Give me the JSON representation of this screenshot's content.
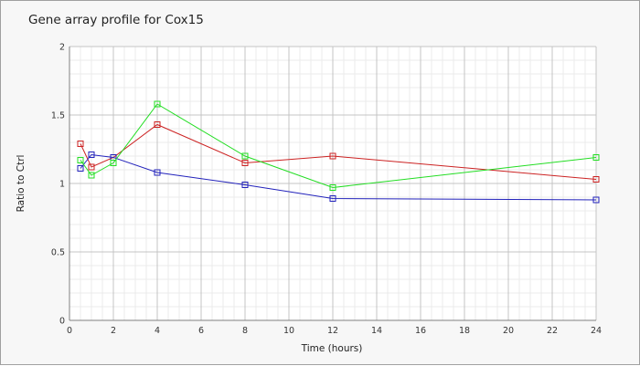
{
  "chart_data": {
    "type": "line",
    "title": "Gene array profile for Cox15",
    "xlabel": "Time (hours)",
    "ylabel": "Ratio to Ctrl",
    "xlim": [
      0,
      24
    ],
    "ylim": [
      0,
      2
    ],
    "xticks": [
      0,
      2,
      4,
      6,
      8,
      10,
      12,
      14,
      16,
      18,
      20,
      22,
      24
    ],
    "yticks": [
      0,
      0.5,
      1,
      1.5,
      2
    ],
    "grid": true,
    "legend": "none",
    "series": [
      {
        "color": "#cc2222",
        "x": [
          0.5,
          1,
          2,
          4,
          8,
          12,
          24
        ],
        "values": [
          1.29,
          1.12,
          1.19,
          1.43,
          1.15,
          1.2,
          1.03
        ]
      },
      {
        "color": "#2222bb",
        "x": [
          0.5,
          1,
          2,
          4,
          8,
          12,
          24
        ],
        "values": [
          1.11,
          1.21,
          1.19,
          1.08,
          0.99,
          0.89,
          0.88
        ]
      },
      {
        "color": "#22dd22",
        "x": [
          0.5,
          1,
          2,
          4,
          8,
          12,
          24
        ],
        "values": [
          1.17,
          1.06,
          1.15,
          1.58,
          1.2,
          0.97,
          1.19
        ]
      }
    ]
  }
}
